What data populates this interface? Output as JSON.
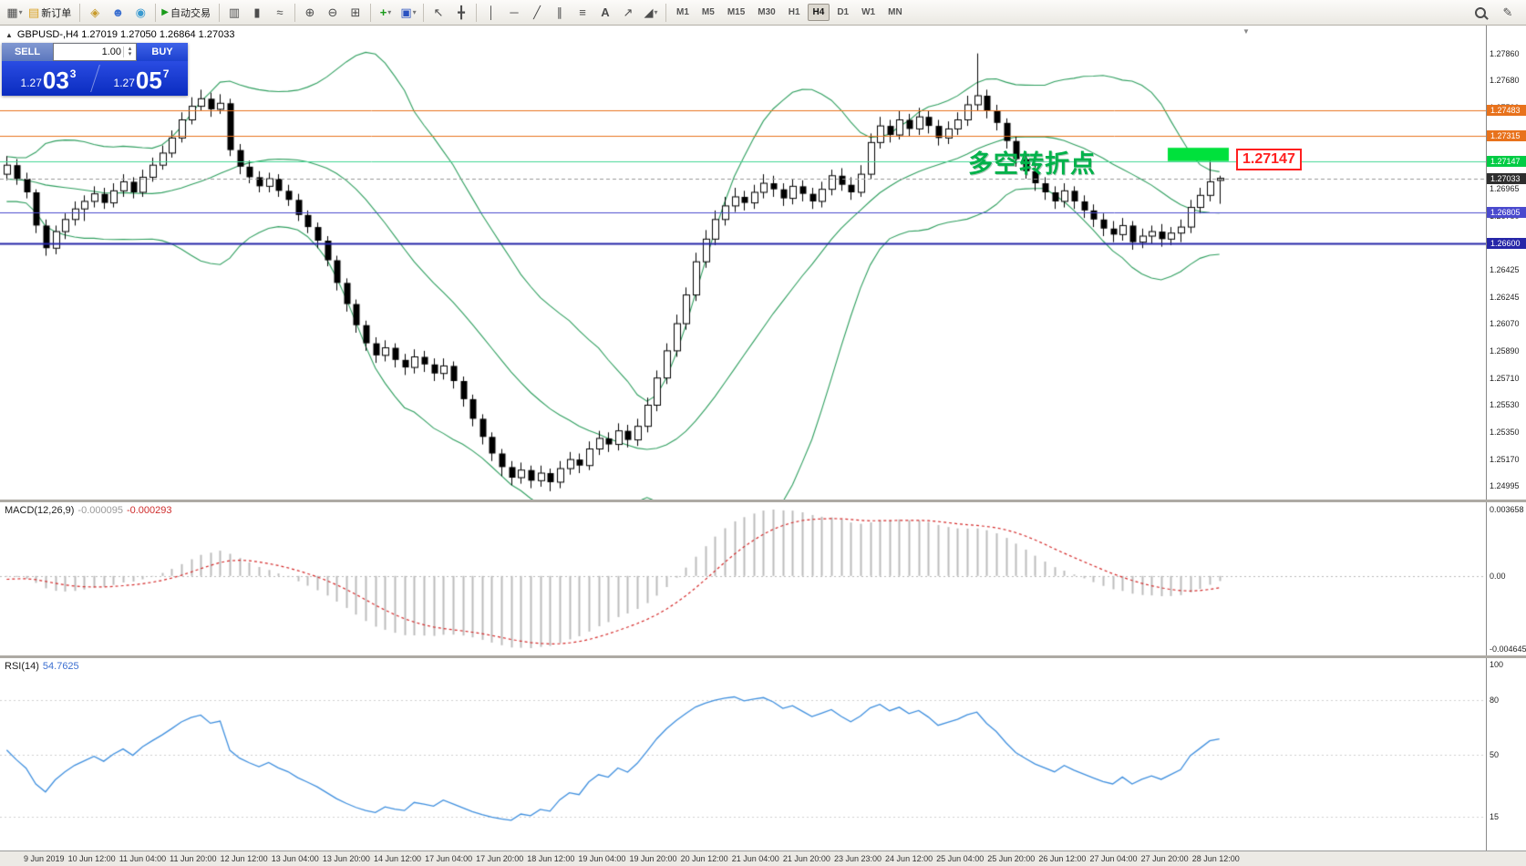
{
  "colors": {
    "band_green": "#2e9e5e",
    "macd_bar": "#bcbcbc",
    "macd_signal": "#d42a2a",
    "rsi_line": "#3f8fde",
    "highlight_green": "#00e13c",
    "annotation_green": "#00b24a",
    "callout_red": "#ff1f1f"
  },
  "toolbar": {
    "new_order_label": "新订单",
    "auto_trading_label": "自动交易",
    "timeframes": [
      "M1",
      "M5",
      "M15",
      "M30",
      "H1",
      "H4",
      "D1",
      "W1",
      "MN"
    ],
    "active_timeframe": "H4",
    "icons": {
      "chart_window": "▦",
      "new_order": "▤",
      "mql5": "◈",
      "profile": "☻",
      "news": "◉",
      "autotrade_play": "▶",
      "bar_chart": "▥",
      "candlestick": "▮",
      "line_chart": "≈",
      "zoom_in": "⊕",
      "zoom_out": "⊖",
      "tile": "⊞",
      "indicators": "+",
      "objects": "▣",
      "cursor": "↖",
      "crosshair": "╋",
      "vline": "│",
      "hline": "─",
      "trendline": "╱",
      "channel": "∥",
      "fibo": "≡",
      "text": "A",
      "arrows": "↗",
      "shapes": "◢",
      "dropdown": "▾",
      "pencil": "✎",
      "collapse": "▲",
      "scroll_marker": "▼",
      "spin_up": "▴",
      "spin_down": "▾"
    }
  },
  "chart": {
    "title": "GBPUSD-,H4 1.27019 1.27050 1.26864 1.27033",
    "trade_panel": {
      "sell_label": "SELL",
      "buy_label": "BUY",
      "volume": "1.00",
      "sell_price_prefix": "1.27",
      "sell_price_main": "03",
      "sell_price_sup": "3",
      "buy_price_prefix": "1.27",
      "buy_price_main": "05",
      "buy_price_sup": "7"
    },
    "annotation_text": "多空转折点",
    "callout_label": "1.27147",
    "price_scale_ticks": [
      "1.27860",
      "1.27680",
      "1.27500",
      "1.27325",
      "1.27145",
      "1.26965",
      "1.26780",
      "1.26600",
      "1.26425",
      "1.26245",
      "1.26070",
      "1.25890",
      "1.25710",
      "1.25530",
      "1.25350",
      "1.25170",
      "1.24995"
    ],
    "levels": [
      {
        "price": 1.27483,
        "label": "1.27483",
        "color": "#e8721c",
        "label_bg": "#e8721c",
        "style": "solid",
        "width": 1
      },
      {
        "price": 1.27315,
        "label": "1.27315",
        "color": "#e8721c",
        "label_bg": "#e8721c",
        "style": "solid",
        "width": 1
      },
      {
        "price": 1.27147,
        "label": "1.27147",
        "color": "#45d695",
        "label_bg": "#00cc44",
        "style": "solid",
        "width": 1
      },
      {
        "price": 1.27033,
        "label": "1.27033",
        "color": "#9a9a9a",
        "label_bg": "#2e2e2e",
        "style": "dash",
        "width": 1
      },
      {
        "price": 1.26805,
        "label": "1.26805",
        "color": "#4a4ace",
        "label_bg": "#4a4ace",
        "style": "solid",
        "width": 1
      },
      {
        "price": 1.266,
        "label": "1.26600",
        "color": "#2626a8",
        "label_bg": "#2626a8",
        "style": "solid",
        "width": 2
      }
    ],
    "highlight_box": {
      "x": 1281,
      "width": 67,
      "price_top": 1.27235,
      "price_bottom": 1.27147
    }
  },
  "macd": {
    "label": "MACD(12,26,9)",
    "value_main": "-0.000095",
    "value_signal": "-0.000293",
    "scale_top": "0.003658",
    "scale_zero": "0.00",
    "scale_bottom": "-0.004645"
  },
  "rsi": {
    "label": "RSI(14)",
    "value": "54.7625",
    "scale": [
      100,
      80,
      50,
      15
    ],
    "levels": [
      80,
      50,
      15
    ]
  },
  "time_axis": [
    "9 Jun 2019",
    "10 Jun 12:00",
    "11 Jun 04:00",
    "11 Jun 20:00",
    "12 Jun 12:00",
    "13 Jun 04:00",
    "13 Jun 20:00",
    "14 Jun 12:00",
    "17 Jun 04:00",
    "17 Jun 20:00",
    "18 Jun 12:00",
    "19 Jun 04:00",
    "19 Jun 20:00",
    "20 Jun 12:00",
    "21 Jun 04:00",
    "21 Jun 20:00",
    "23 Jun 23:00",
    "24 Jun 12:00",
    "25 Jun 04:00",
    "25 Jun 20:00",
    "26 Jun 12:00",
    "27 Jun 04:00",
    "27 Jun 20:00",
    "28 Jun 12:00"
  ],
  "chart_data": [
    {
      "type": "candlestick",
      "symbol": "GBPUSD-",
      "timeframe": "H4",
      "title": "GBPUSD-,H4",
      "last_ohlc": {
        "open": 1.27019,
        "high": 1.2705,
        "low": 1.26864,
        "close": 1.27033
      },
      "ylim": [
        1.24905,
        1.28045
      ],
      "overlays": [
        {
          "name": "Bollinger Bands",
          "period": 20,
          "deviation": 2,
          "color": "#2e9e5e"
        }
      ],
      "horizontal_levels": [
        1.27483,
        1.27315,
        1.27147,
        1.26805,
        1.266
      ],
      "lead_in_closes": [
        1.2718,
        1.2724,
        1.2716,
        1.2722,
        1.2728,
        1.272,
        1.2714,
        1.2708,
        1.2702,
        1.2696,
        1.2702,
        1.271,
        1.2704,
        1.2698,
        1.2692,
        1.2686,
        1.2692,
        1.2698,
        1.2706,
        1.2712,
        1.2706,
        1.27,
        1.2694,
        1.27,
        1.2708,
        1.2714,
        1.2708,
        1.2702,
        1.2708,
        1.2706
      ],
      "ohlc": [
        [
          1.2706,
          1.2718,
          1.2702,
          1.2712
        ],
        [
          1.2712,
          1.2716,
          1.2699,
          1.2703
        ],
        [
          1.2703,
          1.2707,
          1.269,
          1.2694
        ],
        [
          1.2694,
          1.2696,
          1.2667,
          1.2672
        ],
        [
          1.2672,
          1.2676,
          1.2652,
          1.2657
        ],
        [
          1.2657,
          1.2672,
          1.2653,
          1.2668
        ],
        [
          1.2668,
          1.268,
          1.2663,
          1.2676
        ],
        [
          1.2676,
          1.2688,
          1.2672,
          1.2683
        ],
        [
          1.2683,
          1.2692,
          1.2675,
          1.2688
        ],
        [
          1.2688,
          1.2698,
          1.2684,
          1.2693
        ],
        [
          1.2693,
          1.2697,
          1.2683,
          1.2687
        ],
        [
          1.2687,
          1.27,
          1.2684,
          1.2695
        ],
        [
          1.2695,
          1.2706,
          1.2691,
          1.2701
        ],
        [
          1.2701,
          1.2704,
          1.269,
          1.2694
        ],
        [
          1.2694,
          1.2709,
          1.2691,
          1.2704
        ],
        [
          1.2704,
          1.2717,
          1.2701,
          1.2712
        ],
        [
          1.2712,
          1.2725,
          1.2709,
          1.272
        ],
        [
          1.272,
          1.2735,
          1.2717,
          1.273
        ],
        [
          1.273,
          1.2747,
          1.2727,
          1.2742
        ],
        [
          1.2742,
          1.2757,
          1.2739,
          1.2751
        ],
        [
          1.2751,
          1.2762,
          1.2748,
          1.2756
        ],
        [
          1.2756,
          1.276,
          1.2744,
          1.2749
        ],
        [
          1.2749,
          1.2759,
          1.2746,
          1.2753
        ],
        [
          1.2753,
          1.2756,
          1.2718,
          1.2722
        ],
        [
          1.2722,
          1.2726,
          1.2706,
          1.2711
        ],
        [
          1.2711,
          1.2715,
          1.27,
          1.2704
        ],
        [
          1.2704,
          1.2708,
          1.2694,
          1.2698
        ],
        [
          1.2698,
          1.2707,
          1.2694,
          1.2703
        ],
        [
          1.2703,
          1.2706,
          1.2691,
          1.2695
        ],
        [
          1.2695,
          1.2699,
          1.2685,
          1.2689
        ],
        [
          1.2689,
          1.2693,
          1.2675,
          1.2679
        ],
        [
          1.2679,
          1.2682,
          1.2667,
          1.2671
        ],
        [
          1.2671,
          1.2674,
          1.2657,
          1.2662
        ],
        [
          1.2662,
          1.2665,
          1.2645,
          1.2649
        ],
        [
          1.2649,
          1.2652,
          1.2629,
          1.2634
        ],
        [
          1.2634,
          1.2637,
          1.2615,
          1.262
        ],
        [
          1.262,
          1.2623,
          1.2601,
          1.2606
        ],
        [
          1.2606,
          1.2609,
          1.2589,
          1.2594
        ],
        [
          1.2594,
          1.2598,
          1.2581,
          1.2586
        ],
        [
          1.2586,
          1.2596,
          1.2582,
          1.2591
        ],
        [
          1.2591,
          1.2594,
          1.2578,
          1.2583
        ],
        [
          1.2583,
          1.2587,
          1.2573,
          1.2578
        ],
        [
          1.2578,
          1.259,
          1.2574,
          1.2585
        ],
        [
          1.2585,
          1.2589,
          1.2575,
          1.258
        ],
        [
          1.258,
          1.2584,
          1.2569,
          1.2574
        ],
        [
          1.2574,
          1.2584,
          1.257,
          1.2579
        ],
        [
          1.2579,
          1.2582,
          1.2564,
          1.2569
        ],
        [
          1.2569,
          1.2572,
          1.2552,
          1.2557
        ],
        [
          1.2557,
          1.256,
          1.2539,
          1.2544
        ],
        [
          1.2544,
          1.2547,
          1.2527,
          1.2532
        ],
        [
          1.2532,
          1.2535,
          1.2516,
          1.2521
        ],
        [
          1.2521,
          1.2524,
          1.2506,
          1.2512
        ],
        [
          1.2512,
          1.2516,
          1.25,
          1.2505
        ],
        [
          1.2505,
          1.2515,
          1.2501,
          1.251
        ],
        [
          1.251,
          1.2513,
          1.2498,
          1.2503
        ],
        [
          1.2503,
          1.2513,
          1.2499,
          1.2508
        ],
        [
          1.2508,
          1.2511,
          1.2496,
          1.2502
        ],
        [
          1.2502,
          1.2516,
          1.2498,
          1.2511
        ],
        [
          1.2511,
          1.2522,
          1.2507,
          1.2517
        ],
        [
          1.2517,
          1.2521,
          1.2508,
          1.2513
        ],
        [
          1.2513,
          1.2529,
          1.251,
          1.2524
        ],
        [
          1.2524,
          1.2536,
          1.252,
          1.2531
        ],
        [
          1.2531,
          1.2535,
          1.2522,
          1.2527
        ],
        [
          1.2527,
          1.2541,
          1.2523,
          1.2536
        ],
        [
          1.2536,
          1.254,
          1.2525,
          1.253
        ],
        [
          1.253,
          1.2544,
          1.2526,
          1.2539
        ],
        [
          1.2539,
          1.2558,
          1.2535,
          1.2553
        ],
        [
          1.2553,
          1.2576,
          1.2549,
          1.2571
        ],
        [
          1.2571,
          1.2594,
          1.2567,
          1.2589
        ],
        [
          1.2589,
          1.2613,
          1.2585,
          1.2607
        ],
        [
          1.2607,
          1.2631,
          1.2603,
          1.2626
        ],
        [
          1.2626,
          1.2654,
          1.2622,
          1.2648
        ],
        [
          1.2648,
          1.2669,
          1.2644,
          1.2663
        ],
        [
          1.2663,
          1.2682,
          1.2659,
          1.2676
        ],
        [
          1.2676,
          1.2691,
          1.2672,
          1.2685
        ],
        [
          1.2685,
          1.2697,
          1.2681,
          1.2691
        ],
        [
          1.2691,
          1.2695,
          1.2682,
          1.2687
        ],
        [
          1.2687,
          1.2699,
          1.2683,
          1.2694
        ],
        [
          1.2694,
          1.2706,
          1.269,
          1.27
        ],
        [
          1.27,
          1.2705,
          1.2691,
          1.2696
        ],
        [
          1.2696,
          1.27,
          1.2685,
          1.269
        ],
        [
          1.269,
          1.2703,
          1.2686,
          1.2698
        ],
        [
          1.2698,
          1.2702,
          1.2688,
          1.2693
        ],
        [
          1.2693,
          1.2697,
          1.2683,
          1.2688
        ],
        [
          1.2688,
          1.2701,
          1.2684,
          1.2696
        ],
        [
          1.2696,
          1.2709,
          1.2692,
          1.2705
        ],
        [
          1.2705,
          1.271,
          1.2695,
          1.2699
        ],
        [
          1.2699,
          1.2704,
          1.2689,
          1.2694
        ],
        [
          1.2694,
          1.2712,
          1.2691,
          1.2706
        ],
        [
          1.2706,
          1.2733,
          1.2703,
          1.2727
        ],
        [
          1.2727,
          1.2744,
          1.2723,
          1.2738
        ],
        [
          1.2738,
          1.2742,
          1.2727,
          1.2732
        ],
        [
          1.2732,
          1.2748,
          1.2729,
          1.2742
        ],
        [
          1.2742,
          1.2746,
          1.2731,
          1.2736
        ],
        [
          1.2736,
          1.275,
          1.2732,
          1.2744
        ],
        [
          1.2744,
          1.2748,
          1.2733,
          1.2738
        ],
        [
          1.2738,
          1.2742,
          1.2725,
          1.273
        ],
        [
          1.273,
          1.2741,
          1.2726,
          1.2736
        ],
        [
          1.2736,
          1.2747,
          1.2732,
          1.2742
        ],
        [
          1.2742,
          1.2758,
          1.2738,
          1.2752
        ],
        [
          1.2752,
          1.2786,
          1.2748,
          1.2758
        ],
        [
          1.2758,
          1.2762,
          1.2743,
          1.2748
        ],
        [
          1.2748,
          1.2752,
          1.2735,
          1.274
        ],
        [
          1.274,
          1.2743,
          1.2723,
          1.2728
        ],
        [
          1.2728,
          1.2731,
          1.2711,
          1.2716
        ],
        [
          1.2716,
          1.272,
          1.2703,
          1.2708
        ],
        [
          1.2708,
          1.2712,
          1.2695,
          1.27
        ],
        [
          1.27,
          1.2704,
          1.2689,
          1.2694
        ],
        [
          1.2694,
          1.2698,
          1.2683,
          1.2688
        ],
        [
          1.2688,
          1.27,
          1.2684,
          1.2695
        ],
        [
          1.2695,
          1.2698,
          1.2683,
          1.2688
        ],
        [
          1.2688,
          1.2692,
          1.2677,
          1.2682
        ],
        [
          1.2682,
          1.2686,
          1.2671,
          1.2676
        ],
        [
          1.2676,
          1.268,
          1.2665,
          1.267
        ],
        [
          1.267,
          1.2675,
          1.2661,
          1.2666
        ],
        [
          1.2666,
          1.2677,
          1.2662,
          1.2672
        ],
        [
          1.2672,
          1.2675,
          1.2656,
          1.2661
        ],
        [
          1.2661,
          1.267,
          1.2657,
          1.2665
        ],
        [
          1.2665,
          1.2672,
          1.266,
          1.2668
        ],
        [
          1.2668,
          1.2673,
          1.2658,
          1.2663
        ],
        [
          1.2663,
          1.2671,
          1.2659,
          1.2667
        ],
        [
          1.2667,
          1.2676,
          1.2661,
          1.2671
        ],
        [
          1.2671,
          1.2689,
          1.2667,
          1.2684
        ],
        [
          1.2684,
          1.2697,
          1.268,
          1.2692
        ],
        [
          1.2692,
          1.2721,
          1.2688,
          1.2701
        ],
        [
          1.27019,
          1.2705,
          1.26864,
          1.27033
        ]
      ]
    },
    {
      "type": "bar",
      "name": "MACD",
      "params": [
        12,
        26,
        9
      ],
      "values_displayed": [
        -9.5e-05,
        -0.000293
      ],
      "scale": [
        0.003658,
        0.0,
        -0.004645
      ]
    },
    {
      "type": "line",
      "name": "RSI",
      "params": [
        14
      ],
      "value_displayed": 54.7625,
      "scale": [
        100,
        80,
        50,
        15
      ]
    }
  ]
}
